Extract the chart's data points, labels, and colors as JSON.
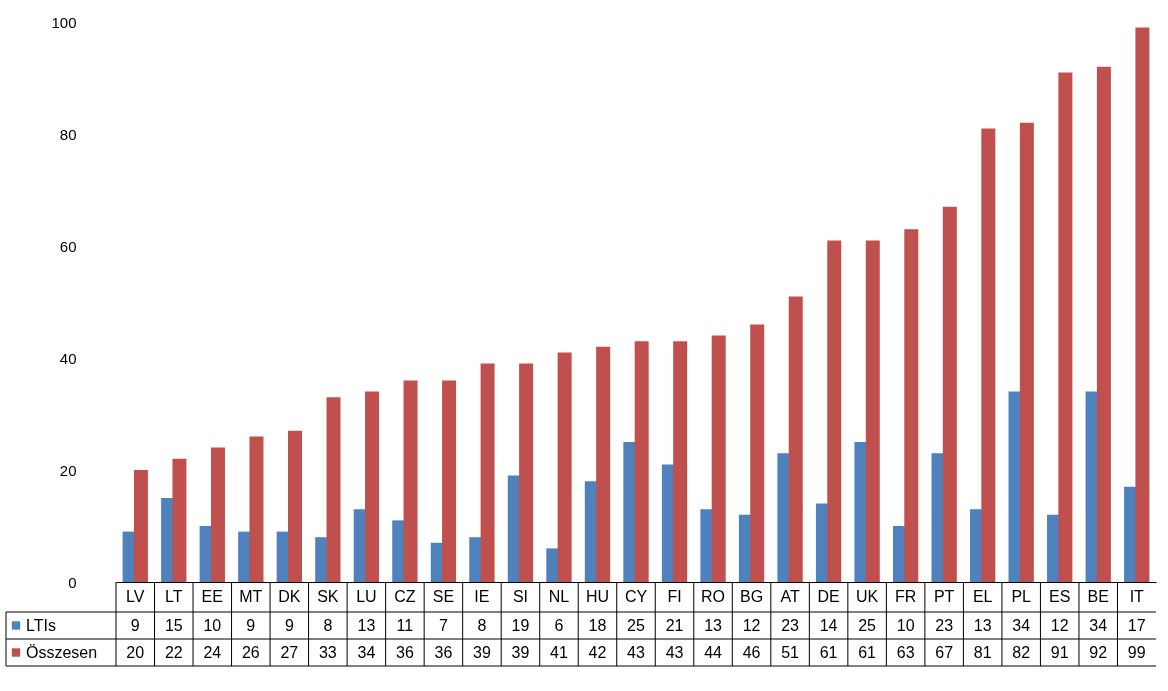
{
  "chart_data": {
    "type": "bar",
    "categories": [
      "LV",
      "LT",
      "EE",
      "MT",
      "DK",
      "SK",
      "LU",
      "CZ",
      "SE",
      "IE",
      "SI",
      "NL",
      "HU",
      "CY",
      "FI",
      "RO",
      "BG",
      "AT",
      "DE",
      "UK",
      "FR",
      "PT",
      "EL",
      "PL",
      "ES",
      "BE",
      "IT"
    ],
    "series": [
      {
        "name": "LTIs",
        "color": "#4f81bd",
        "values": [
          9,
          15,
          10,
          9,
          9,
          8,
          13,
          11,
          7,
          8,
          19,
          6,
          18,
          25,
          21,
          13,
          12,
          23,
          14,
          25,
          10,
          23,
          13,
          34,
          12,
          34,
          17
        ]
      },
      {
        "name": "Összesen",
        "color": "#c0504d",
        "values": [
          20,
          22,
          24,
          26,
          27,
          33,
          34,
          36,
          36,
          39,
          39,
          41,
          42,
          43,
          43,
          44,
          46,
          51,
          61,
          61,
          63,
          67,
          81,
          82,
          91,
          92,
          99
        ]
      }
    ],
    "ylim": [
      0,
      100
    ],
    "yticks": [
      0,
      20,
      40,
      60,
      80,
      100
    ],
    "grid": false,
    "legend": "bottom left",
    "data_labels": true
  }
}
